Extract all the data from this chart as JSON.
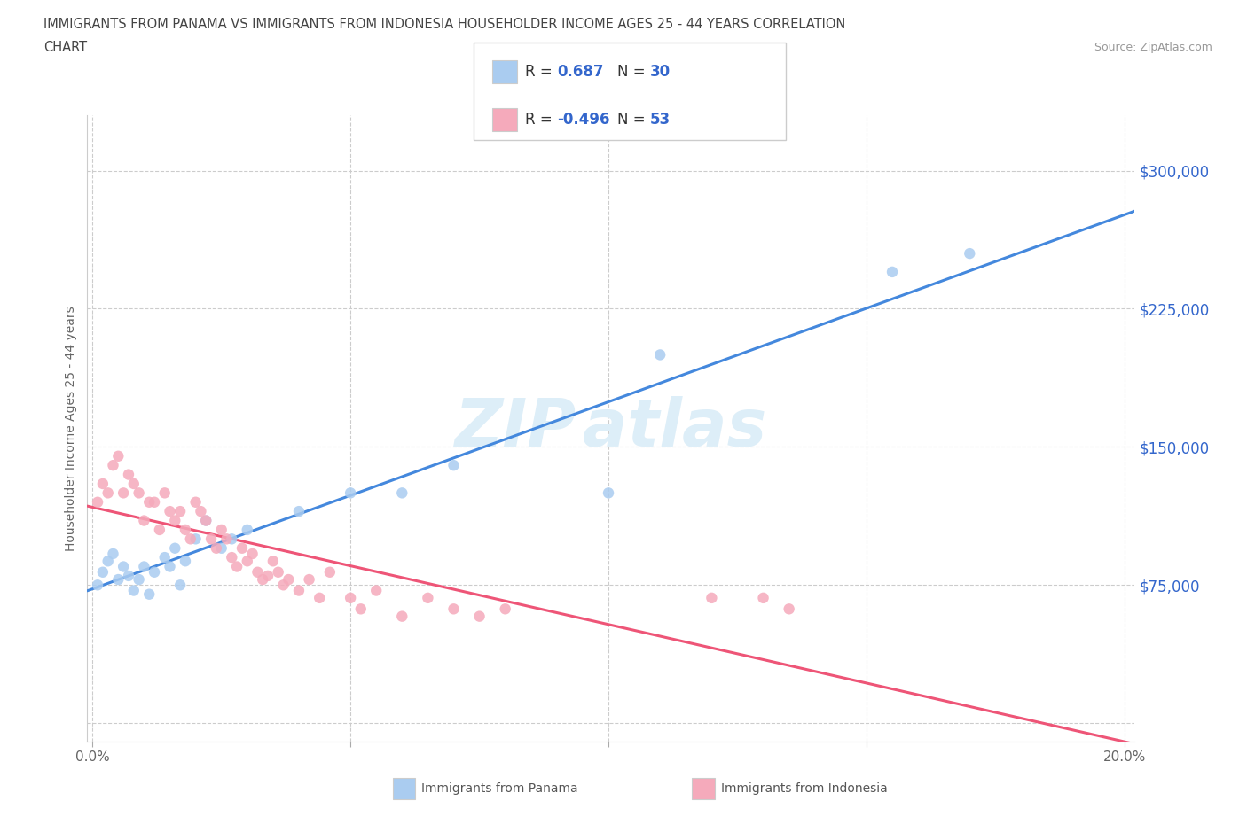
{
  "title_line1": "IMMIGRANTS FROM PANAMA VS IMMIGRANTS FROM INDONESIA HOUSEHOLDER INCOME AGES 25 - 44 YEARS CORRELATION",
  "title_line2": "CHART",
  "source": "Source: ZipAtlas.com",
  "ylabel": "Householder Income Ages 25 - 44 years",
  "xlim": [
    -0.001,
    0.202
  ],
  "ylim": [
    -10000,
    330000
  ],
  "ytick_positions": [
    0,
    75000,
    150000,
    225000,
    300000
  ],
  "ytick_labels": [
    "",
    "$75,000",
    "$150,000",
    "$225,000",
    "$300,000"
  ],
  "xtick_positions": [
    0.0,
    0.05,
    0.1,
    0.15,
    0.2
  ],
  "xtick_labels": [
    "0.0%",
    "",
    "",
    "",
    "20.0%"
  ],
  "panama_R": "0.687",
  "panama_N": "30",
  "indonesia_R": "-0.496",
  "indonesia_N": "53",
  "panama_scatter_color": "#aaccf0",
  "panama_line_color": "#4488dd",
  "indonesia_scatter_color": "#f5aabb",
  "indonesia_line_color": "#ee5577",
  "legend_R_color": "#3366cc",
  "watermark_color": "#ddeef8",
  "background_color": "#ffffff",
  "panama_x": [
    0.001,
    0.002,
    0.003,
    0.004,
    0.005,
    0.006,
    0.007,
    0.008,
    0.009,
    0.01,
    0.011,
    0.012,
    0.014,
    0.015,
    0.016,
    0.017,
    0.018,
    0.02,
    0.022,
    0.025,
    0.027,
    0.03,
    0.04,
    0.05,
    0.06,
    0.07,
    0.1,
    0.11,
    0.155,
    0.17
  ],
  "panama_y": [
    75000,
    82000,
    88000,
    92000,
    78000,
    85000,
    80000,
    72000,
    78000,
    85000,
    70000,
    82000,
    90000,
    85000,
    95000,
    75000,
    88000,
    100000,
    110000,
    95000,
    100000,
    105000,
    115000,
    125000,
    125000,
    140000,
    125000,
    200000,
    245000,
    255000
  ],
  "indonesia_x": [
    0.001,
    0.002,
    0.003,
    0.004,
    0.005,
    0.006,
    0.007,
    0.008,
    0.009,
    0.01,
    0.011,
    0.012,
    0.013,
    0.014,
    0.015,
    0.016,
    0.017,
    0.018,
    0.019,
    0.02,
    0.021,
    0.022,
    0.023,
    0.024,
    0.025,
    0.026,
    0.027,
    0.028,
    0.029,
    0.03,
    0.031,
    0.032,
    0.033,
    0.034,
    0.035,
    0.036,
    0.037,
    0.038,
    0.04,
    0.042,
    0.044,
    0.046,
    0.05,
    0.052,
    0.055,
    0.06,
    0.065,
    0.07,
    0.075,
    0.08,
    0.12,
    0.13,
    0.135
  ],
  "indonesia_y": [
    120000,
    130000,
    125000,
    140000,
    145000,
    125000,
    135000,
    130000,
    125000,
    110000,
    120000,
    120000,
    105000,
    125000,
    115000,
    110000,
    115000,
    105000,
    100000,
    120000,
    115000,
    110000,
    100000,
    95000,
    105000,
    100000,
    90000,
    85000,
    95000,
    88000,
    92000,
    82000,
    78000,
    80000,
    88000,
    82000,
    75000,
    78000,
    72000,
    78000,
    68000,
    82000,
    68000,
    62000,
    72000,
    58000,
    68000,
    62000,
    58000,
    62000,
    68000,
    68000,
    62000
  ]
}
